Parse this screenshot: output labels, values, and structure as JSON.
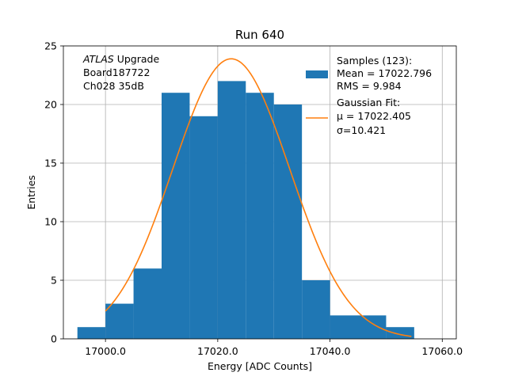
{
  "chart_data": {
    "type": "bar",
    "title": "Run 640",
    "xlabel": "Energy [ADC Counts]",
    "ylabel": "Entries",
    "xlim": [
      16992.5,
      17062.5
    ],
    "ylim": [
      0,
      25
    ],
    "grid": true,
    "xticks": [
      17000.0,
      17020.0,
      17040.0,
      17060.0
    ],
    "xtick_labels": [
      "17000.0",
      "17020.0",
      "17040.0",
      "17060.0"
    ],
    "yticks": [
      0,
      5,
      10,
      15,
      20,
      25
    ],
    "ytick_labels": [
      "0",
      "5",
      "10",
      "15",
      "20",
      "25"
    ],
    "histogram": {
      "bin_edges": [
        16995,
        17000,
        17005,
        17010,
        17015,
        17020,
        17025,
        17030,
        17035,
        17040,
        17045,
        17050,
        17055
      ],
      "counts": [
        1,
        3,
        6,
        21,
        19,
        22,
        21,
        20,
        5,
        2,
        2,
        1
      ],
      "color": "#1f77b4"
    },
    "fit": {
      "mu": 17022.405,
      "sigma": 10.421,
      "peak": 23.9,
      "x_range": [
        17000,
        17054.5
      ],
      "color": "#ff7f0e"
    },
    "annotation": {
      "experiment": "ATLAS",
      "line1_rest": " Upgrade",
      "line2": " Board187722",
      "line3": " Ch028 35dB"
    },
    "legend": {
      "placement": "upper right",
      "samples_title": "Samples (123):",
      "samples_mean": " Mean = 17022.796",
      "samples_rms": " RMS = 9.984",
      "fit_title": "Gaussian Fit:",
      "fit_mu": " μ = 17022.405",
      "fit_sigma": " σ=10.421"
    }
  }
}
